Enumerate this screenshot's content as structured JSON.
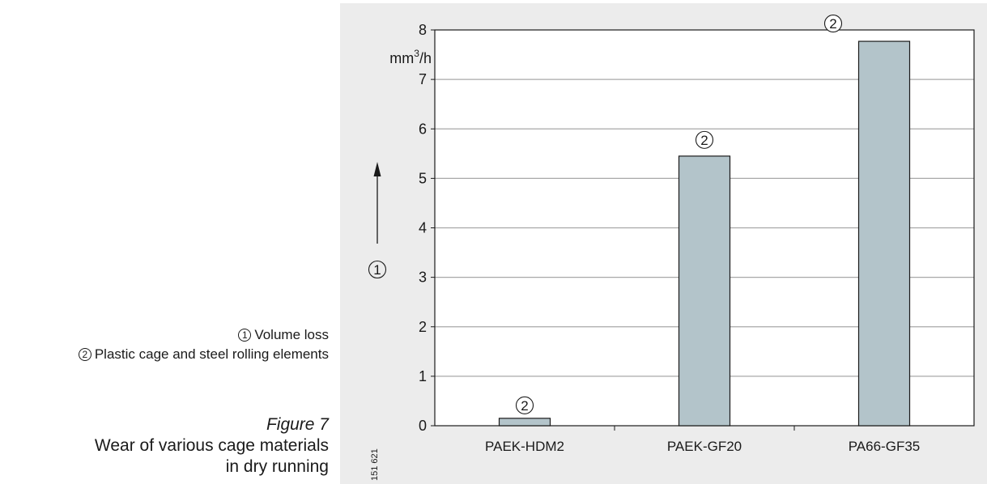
{
  "legend": {
    "item1_marker": "1",
    "item1_label": "Volume loss",
    "item2_marker": "2",
    "item2_label": "Plastic cage and steel rolling elements"
  },
  "caption": {
    "figure": "Figure 7",
    "line1": "Wear of various cage materials",
    "line2": "in dry running"
  },
  "chart_data": {
    "type": "bar",
    "categories": [
      "PAEK-HDM2",
      "PAEK-GF20",
      "PA66-GF35"
    ],
    "values": [
      0.15,
      5.45,
      7.77
    ],
    "value_markers": [
      "2",
      "2",
      "2"
    ],
    "ylim": [
      0,
      8
    ],
    "yticks": [
      0,
      1,
      2,
      3,
      4,
      5,
      6,
      7,
      8
    ],
    "yunit_base": "mm",
    "yunit_exp": "3",
    "yunit_tail": "/h",
    "yaxis_marker": "1",
    "grid": true,
    "bar_color": "#b3c4ca",
    "panel_color": "#ececec",
    "drawing_number": "151 621"
  }
}
